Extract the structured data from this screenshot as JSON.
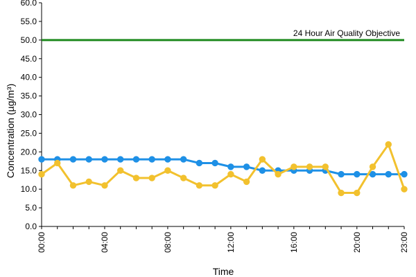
{
  "chart_data": {
    "type": "line",
    "xlabel": "Time",
    "ylabel": "Concentration (µg/m³)",
    "ylim": [
      0,
      60
    ],
    "yticks": [
      "0.0",
      "5.0",
      "10.0",
      "15.0",
      "20.0",
      "25.0",
      "30.0",
      "35.0",
      "40.0",
      "45.0",
      "50.0",
      "55.0",
      "60.0"
    ],
    "x": [
      0,
      1,
      2,
      3,
      4,
      5,
      6,
      7,
      8,
      9,
      10,
      11,
      12,
      13,
      14,
      15,
      16,
      17,
      18,
      19,
      20,
      21,
      22,
      23
    ],
    "xticks": [
      {
        "x": 0,
        "label": "00:00"
      },
      {
        "x": 4,
        "label": "04:00"
      },
      {
        "x": 8,
        "label": "08:00"
      },
      {
        "x": 12,
        "label": "12:00"
      },
      {
        "x": 16,
        "label": "16:00"
      },
      {
        "x": 20,
        "label": "20:00"
      },
      {
        "x": 23,
        "label": "23:00"
      }
    ],
    "series": [
      {
        "color": "#1e90e6",
        "values": [
          18,
          18,
          18,
          18,
          18,
          18,
          18,
          18,
          18,
          18,
          17,
          17,
          16,
          16,
          15,
          15,
          15,
          15,
          15,
          14,
          14,
          14,
          14,
          14
        ]
      },
      {
        "color": "#f2c12e",
        "values": [
          14,
          17,
          11,
          12,
          11,
          15,
          13,
          13,
          15,
          13,
          11,
          11,
          14,
          12,
          18,
          14,
          16,
          16,
          16,
          9,
          9,
          16,
          22,
          10
        ]
      }
    ],
    "reference_line": {
      "value": 50,
      "label": "24 Hour Air Quality Objective",
      "color": "#1f8a1f"
    },
    "grid": false,
    "legend": "none"
  }
}
